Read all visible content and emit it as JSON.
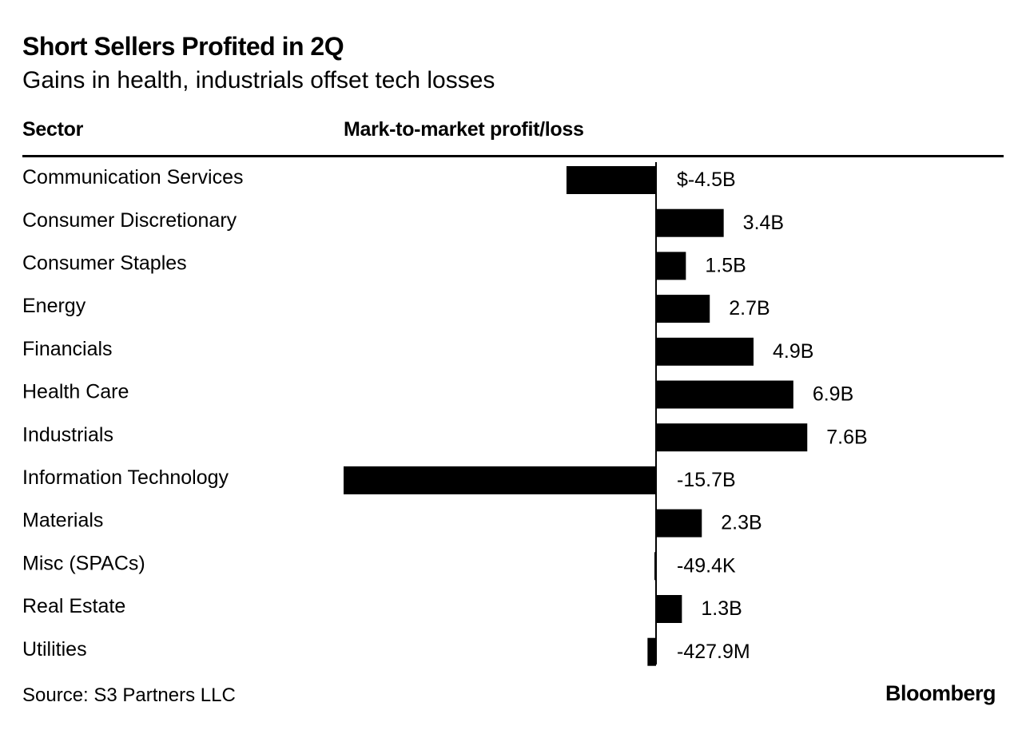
{
  "header": {
    "title": "Short Sellers Profited in 2Q",
    "subtitle": "Gains in health, industrials offset tech losses",
    "col_sector": "Sector",
    "col_metric": "Mark-to-market profit/loss"
  },
  "footer": {
    "source": "Source: S3 Partners LLC",
    "brand": "Bloomberg"
  },
  "chart_data": {
    "type": "bar",
    "orientation": "horizontal",
    "unit": "USD billions",
    "categories": [
      "Communication Services",
      "Consumer Discretionary",
      "Consumer Staples",
      "Energy",
      "Financials",
      "Health Care",
      "Industrials",
      "Information Technology",
      "Materials",
      "Misc (SPACs)",
      "Real Estate",
      "Utilities"
    ],
    "values": [
      -4.5,
      3.4,
      1.5,
      2.7,
      4.9,
      6.9,
      7.6,
      -15.7,
      2.3,
      -4.94e-05,
      1.3,
      -0.4279
    ],
    "labels": [
      "$-4.5B",
      "3.4B",
      "1.5B",
      "2.7B",
      "4.9B",
      "6.9B",
      "7.6B",
      "-15.7B",
      "2.3B",
      "-49.4K",
      "1.3B",
      "-427.9M"
    ],
    "xlim": [
      -15.7,
      7.6
    ],
    "bar_color": "#000000",
    "grid": false,
    "legend": "none"
  }
}
